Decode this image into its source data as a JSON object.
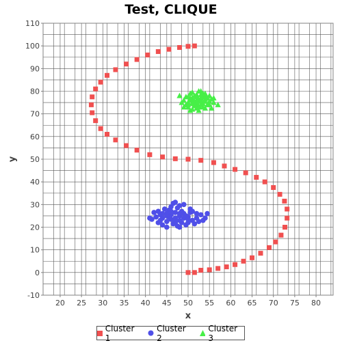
{
  "chart_data": {
    "type": "scatter",
    "title": "Test, CLIQUE",
    "xlabel": "x",
    "ylabel": "y",
    "xlim": [
      16,
      84
    ],
    "ylim": [
      -10,
      110
    ],
    "x_ticks": [
      20,
      25,
      30,
      35,
      40,
      45,
      50,
      55,
      60,
      65,
      70,
      75,
      80
    ],
    "y_ticks": [
      -10,
      0,
      10,
      20,
      30,
      40,
      50,
      60,
      70,
      80,
      90,
      100,
      110
    ],
    "grid": true,
    "legend_position": "bottom",
    "series": [
      {
        "name": "Cluster 1",
        "marker": "square",
        "color": "#f05050",
        "points": [
          [
            50,
            0
          ],
          [
            51.5,
            0
          ],
          [
            53,
            1
          ],
          [
            55,
            1.2
          ],
          [
            57,
            1.8
          ],
          [
            59,
            2.5
          ],
          [
            61,
            3.5
          ],
          [
            63,
            5
          ],
          [
            65,
            6.5
          ],
          [
            67,
            8.5
          ],
          [
            69,
            11
          ],
          [
            70.5,
            13.5
          ],
          [
            71.8,
            16.5
          ],
          [
            72.7,
            20
          ],
          [
            73.2,
            24
          ],
          [
            73.2,
            28
          ],
          [
            72.6,
            31.5
          ],
          [
            71.5,
            34.5
          ],
          [
            70,
            37.5
          ],
          [
            68,
            40
          ],
          [
            66,
            42
          ],
          [
            63.5,
            44
          ],
          [
            61,
            45.5
          ],
          [
            58.5,
            47
          ],
          [
            56,
            48.5
          ],
          [
            53,
            49.5
          ],
          [
            50,
            50
          ],
          [
            47,
            50.2
          ],
          [
            44,
            51
          ],
          [
            41,
            52
          ],
          [
            38,
            54
          ],
          [
            35.5,
            56
          ],
          [
            33,
            58.5
          ],
          [
            31,
            61
          ],
          [
            29.5,
            63.5
          ],
          [
            28.3,
            67
          ],
          [
            27.5,
            70.5
          ],
          [
            27.3,
            74
          ],
          [
            27.5,
            77.5
          ],
          [
            28.3,
            81
          ],
          [
            29.5,
            84
          ],
          [
            31,
            87
          ],
          [
            33,
            89.5
          ],
          [
            35.5,
            92
          ],
          [
            38,
            94
          ],
          [
            40.5,
            96
          ],
          [
            43,
            97.5
          ],
          [
            45.5,
            98.5
          ],
          [
            48,
            99.3
          ],
          [
            50,
            99.8
          ],
          [
            51.5,
            100
          ]
        ]
      },
      {
        "name": "Cluster 2",
        "marker": "circle",
        "color": "#4f4fe8",
        "points": [
          [
            47,
            24
          ],
          [
            46,
            25.5
          ],
          [
            48,
            23
          ],
          [
            45,
            22.5
          ],
          [
            49,
            26
          ],
          [
            44,
            24
          ],
          [
            50,
            24.5
          ],
          [
            46.5,
            21.5
          ],
          [
            48.5,
            27
          ],
          [
            43.5,
            25.5
          ],
          [
            51,
            23
          ],
          [
            45.5,
            27.5
          ],
          [
            47.5,
            20.5
          ],
          [
            50.5,
            26.5
          ],
          [
            43,
            22
          ],
          [
            52,
            24
          ],
          [
            44.5,
            28
          ],
          [
            49.5,
            21
          ],
          [
            46,
            29
          ],
          [
            53,
            25.5
          ],
          [
            42.5,
            24.5
          ],
          [
            48,
            29.5
          ],
          [
            51.5,
            21.5
          ],
          [
            45,
            20
          ],
          [
            47,
            26.5
          ],
          [
            49,
            24
          ],
          [
            46,
            23.5
          ],
          [
            48,
            25
          ],
          [
            44,
            26
          ],
          [
            50,
            22
          ],
          [
            47.5,
            28.5
          ],
          [
            43,
            27
          ],
          [
            52.5,
            22.5
          ],
          [
            45.5,
            24.5
          ],
          [
            48.5,
            22
          ],
          [
            50.5,
            28
          ],
          [
            46.5,
            30.5
          ],
          [
            41.5,
            23.5
          ],
          [
            54,
            24
          ],
          [
            44,
            21
          ],
          [
            49,
            30
          ],
          [
            42,
            26.5
          ],
          [
            51,
            27
          ],
          [
            47,
            22
          ],
          [
            53.5,
            23
          ],
          [
            45,
            26
          ],
          [
            48,
            20
          ],
          [
            46,
            27
          ],
          [
            49.5,
            25
          ],
          [
            50,
            23.5
          ],
          [
            52,
            26
          ],
          [
            43.5,
            23
          ],
          [
            47,
            31
          ],
          [
            54.5,
            26
          ],
          [
            41,
            24
          ],
          [
            45,
            25
          ],
          [
            48,
            26
          ],
          [
            47,
            23
          ]
        ]
      },
      {
        "name": "Cluster 3",
        "marker": "triangle",
        "color": "#47ef47",
        "points": [
          [
            52,
            76
          ],
          [
            51,
            74.5
          ],
          [
            53,
            77
          ],
          [
            50.5,
            76
          ],
          [
            52.5,
            73.5
          ],
          [
            54,
            75.5
          ],
          [
            51.5,
            78
          ],
          [
            49.5,
            74
          ],
          [
            53.5,
            79
          ],
          [
            55,
            74
          ],
          [
            50,
            77.5
          ],
          [
            52,
            72.5
          ],
          [
            54.5,
            77
          ],
          [
            51,
            72
          ],
          [
            49,
            76
          ],
          [
            53,
            74
          ],
          [
            55.5,
            76.5
          ],
          [
            50.5,
            79
          ],
          [
            52.5,
            80
          ],
          [
            48.5,
            75
          ],
          [
            54,
            72.5
          ],
          [
            51.5,
            75.5
          ],
          [
            53,
            76
          ],
          [
            56,
            75
          ],
          [
            50,
            73
          ],
          [
            51,
            77
          ],
          [
            52,
            74
          ],
          [
            54,
            78
          ],
          [
            49.5,
            77.5
          ],
          [
            53.5,
            73
          ],
          [
            55,
            78
          ],
          [
            52,
            78.5
          ],
          [
            50,
            75
          ],
          [
            51.5,
            73.5
          ],
          [
            53,
            75.5
          ],
          [
            52.5,
            71.5
          ],
          [
            54.5,
            74
          ],
          [
            57,
            74
          ],
          [
            48,
            78
          ],
          [
            51,
            79.5
          ],
          [
            53,
            80
          ],
          [
            55.5,
            72.5
          ],
          [
            50.5,
            71.5
          ],
          [
            52,
            75
          ],
          [
            53.5,
            77.5
          ],
          [
            51,
            76
          ],
          [
            54,
            76.5
          ],
          [
            49,
            73
          ],
          [
            56,
            77
          ],
          [
            52.5,
            76.5
          ],
          [
            50,
            74
          ],
          [
            53,
            78.5
          ],
          [
            55,
            75.5
          ],
          [
            51.5,
            74.5
          ],
          [
            52,
            77.5
          ],
          [
            53.5,
            74.5
          ],
          [
            50.5,
            77
          ],
          [
            54,
            79
          ],
          [
            51,
            75
          ],
          [
            52.5,
            73
          ]
        ]
      }
    ]
  }
}
